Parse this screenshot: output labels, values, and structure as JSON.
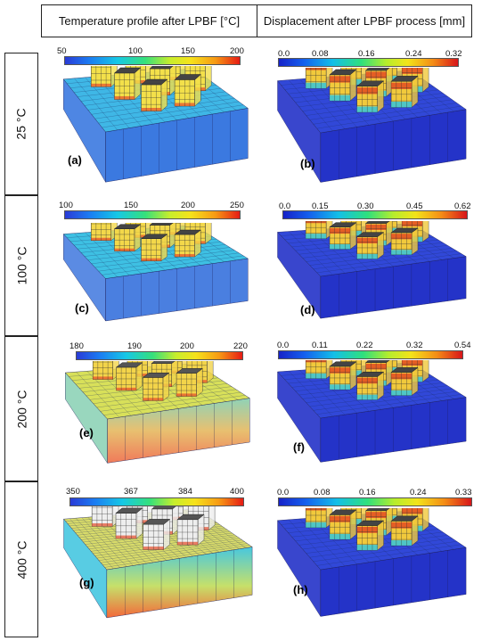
{
  "headers": {
    "temperature": "Temperature profile after LPBF [°C]",
    "displacement": "Displacement after LPBF process [mm]"
  },
  "rows": [
    {
      "label": "25 °C",
      "temp_ticks": [
        "50",
        "100",
        "150",
        "200"
      ],
      "disp_ticks": [
        "0.0",
        "0.08",
        "0.16",
        "0.24",
        "0.32"
      ],
      "temp_panel": "(a)",
      "disp_panel": "(b)"
    },
    {
      "label": "100 °C",
      "temp_ticks": [
        "100",
        "150",
        "200",
        "250"
      ],
      "disp_ticks": [
        "0.0",
        "0.15",
        "0.30",
        "0.45",
        "0.62"
      ],
      "temp_panel": "(c)",
      "disp_panel": "(d)"
    },
    {
      "label": "200 °C",
      "temp_ticks": [
        "180",
        "190",
        "200",
        "220"
      ],
      "disp_ticks": [
        "0.0",
        "0.11",
        "0.22",
        "0.32",
        "0.54"
      ],
      "temp_panel": "(e)",
      "disp_panel": "(f)"
    },
    {
      "label": "400 °C",
      "temp_ticks": [
        "350",
        "367",
        "384",
        "400"
      ],
      "disp_ticks": [
        "0.0",
        "0.08",
        "0.16",
        "0.24",
        "0.33"
      ],
      "temp_panel": "(g)",
      "disp_panel": "(h)"
    }
  ],
  "colors": {
    "plate_top_blue": "#3ea3e8",
    "plate_side_blue": "#3b79e0",
    "disp_plate_top": "#3148d8",
    "disp_plate_side": "#2433c8",
    "hot_red": "#e61b14",
    "hot_orange": "#f79a14",
    "warm_yellow": "#f1e04a"
  }
}
